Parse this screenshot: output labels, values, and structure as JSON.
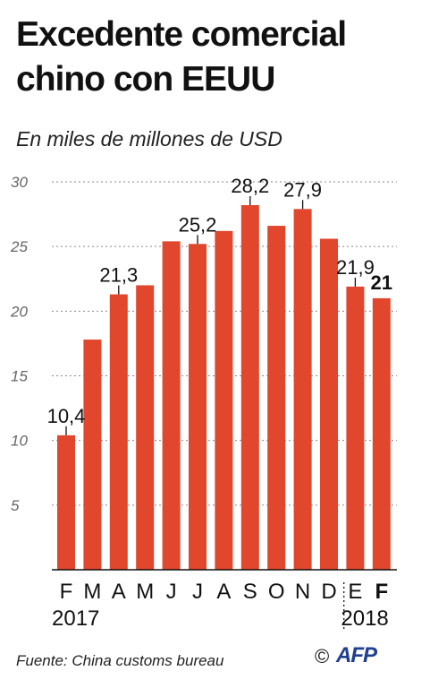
{
  "title": "Excedente comercial chino con EEUU",
  "subtitle": "En miles de millones de USD",
  "source": "Fuente: China customs bureau",
  "copyright": "©",
  "logo": "AFP",
  "colors": {
    "bar": "#e0472c",
    "logo": "#1f3f8f"
  },
  "chart_data": {
    "type": "bar",
    "title": "Excedente comercial chino con EEUU",
    "subtitle": "En miles de millones de USD",
    "categories": [
      "F",
      "M",
      "A",
      "M",
      "J",
      "J",
      "A",
      "S",
      "O",
      "N",
      "D",
      "E",
      "F"
    ],
    "values": [
      10.4,
      17.8,
      21.3,
      22.0,
      25.4,
      25.2,
      26.2,
      28.2,
      26.6,
      27.9,
      25.6,
      21.9,
      21
    ],
    "data_labels": [
      "10,4",
      "",
      "21,3",
      "",
      "",
      "25,2",
      "",
      "28,2",
      "",
      "27,9",
      "",
      "21,9",
      "21"
    ],
    "bold_index": 12,
    "years": [
      {
        "label": "2017",
        "start_index": 0
      },
      {
        "label": "2018",
        "start_index": 11
      }
    ],
    "ylim": [
      0,
      30
    ],
    "yticks": [
      5,
      10,
      15,
      20,
      25,
      30
    ],
    "grid": true,
    "xlabel": "",
    "ylabel": ""
  }
}
